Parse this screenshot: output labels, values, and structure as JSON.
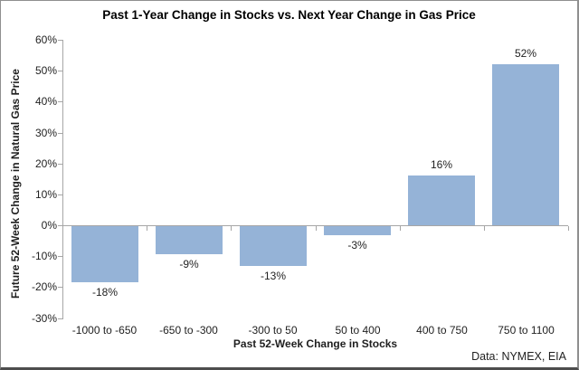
{
  "chart_data": {
    "type": "bar",
    "title": "Past 1-Year Change in Stocks vs. Next Year Change in Gas Price",
    "xlabel": "Past 52-Week Change in Stocks",
    "ylabel": "Future 52-Week Change in Natural Gas Price",
    "source": "Data: NYMEX, EIA",
    "categories": [
      "-1000 to -650",
      "-650 to -300",
      "-300 to 50",
      "50 to 400",
      "400 to 750",
      "750 to 1100"
    ],
    "values": [
      -18,
      -9,
      -13,
      -3,
      16,
      52
    ],
    "value_labels": [
      "-18%",
      "-9%",
      "-13%",
      "-3%",
      "16%",
      "52%"
    ],
    "ylim": [
      -30,
      60
    ],
    "ytick_step": 10,
    "ytick_labels": [
      "60%",
      "50%",
      "40%",
      "30%",
      "20%",
      "10%",
      "0%",
      "-10%",
      "-20%",
      "-30%"
    ],
    "grid": false,
    "legend": "none",
    "bar_color": "#95B3D7",
    "axis_color": "#A6A6A6",
    "text_color": "#1F1F1F"
  }
}
